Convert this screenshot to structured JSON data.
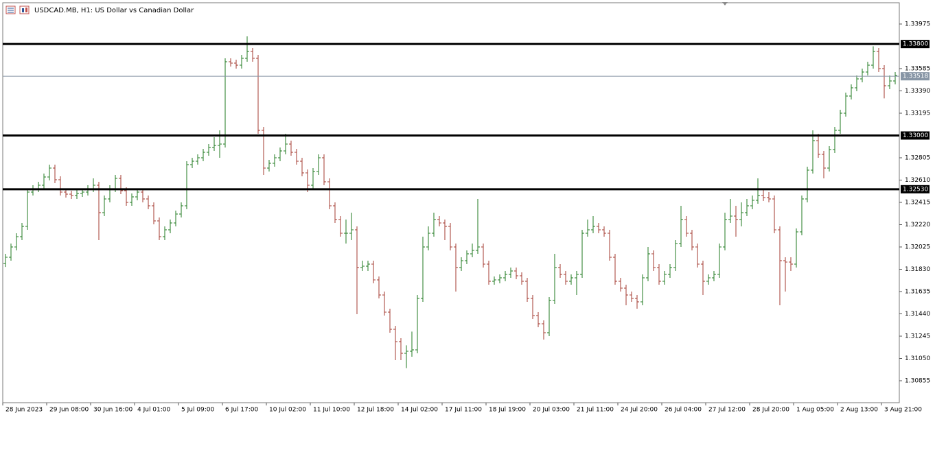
{
  "chart_data": {
    "type": "ohlc",
    "title": "USDCAD.MB, H1:  US Dollar vs Canadian Dollar",
    "up_color": "#1f7a1f",
    "down_color": "#a3392f",
    "ylim": [
      1.30663,
      1.34161
    ],
    "yticks": [
      1.33975,
      1.33585,
      {
        "value": 1.3339,
        "label": "1.33390"
      },
      1.33195,
      1.32805,
      {
        "value": 1.3261,
        "label": "1.32610"
      },
      1.32415,
      {
        "value": 1.3222,
        "label": "1.32220"
      },
      1.32025,
      {
        "value": 1.3183,
        "label": "1.31830"
      },
      1.31635,
      {
        "value": 1.3144,
        "label": "1.31440"
      },
      1.31245,
      {
        "value": 1.3105,
        "label": "1.31050"
      },
      1.30855
    ],
    "levels": [
      {
        "value": 1.338,
        "label": "1.33800"
      },
      {
        "value": 1.33,
        "label": "1.33000"
      },
      {
        "value": 1.3253,
        "label": "1.32530"
      }
    ],
    "price_line": 1.33518,
    "categories": [
      "28 Jun 2023",
      null,
      null,
      null,
      null,
      null,
      null,
      null,
      "29 Jun 08:00",
      null,
      null,
      null,
      null,
      null,
      null,
      null,
      "30 Jun 16:00",
      null,
      null,
      null,
      null,
      null,
      null,
      null,
      "4 Jul 01:00",
      null,
      null,
      null,
      null,
      null,
      null,
      null,
      "5 Jul 09:00",
      null,
      null,
      null,
      null,
      null,
      null,
      null,
      "6 Jul 17:00",
      null,
      null,
      null,
      null,
      null,
      null,
      null,
      "10 Jul 02:00",
      null,
      null,
      null,
      null,
      null,
      null,
      null,
      "11 Jul 10:00",
      null,
      null,
      null,
      null,
      null,
      null,
      null,
      "12 Jul 18:00",
      null,
      null,
      null,
      null,
      null,
      null,
      null,
      "14 Jul 02:00",
      null,
      null,
      null,
      null,
      null,
      null,
      null,
      "17 Jul 11:00",
      null,
      null,
      null,
      null,
      null,
      null,
      null,
      "18 Jul 19:00",
      null,
      null,
      null,
      null,
      null,
      null,
      null,
      "20 Jul 03:00",
      null,
      null,
      null,
      null,
      null,
      null,
      null,
      "21 Jul 11:00",
      null,
      null,
      null,
      null,
      null,
      null,
      null,
      "24 Jul 20:00",
      null,
      null,
      null,
      null,
      null,
      null,
      null,
      "26 Jul 04:00",
      null,
      null,
      null,
      null,
      null,
      null,
      null,
      "27 Jul 12:00",
      null,
      null,
      null,
      null,
      null,
      null,
      null,
      "28 Jul 20:00",
      null,
      null,
      null,
      null,
      null,
      null,
      null,
      "1 Aug 05:00",
      null,
      null,
      null,
      null,
      null,
      null,
      null,
      "2 Aug 13:00",
      null,
      null,
      null,
      null,
      null,
      null,
      null,
      "3 Aug 21:00",
      null,
      null
    ],
    "open": [
      1.3188,
      1.31935,
      1.32025,
      1.32115,
      1.32205,
      1.32505,
      1.32535,
      1.32565,
      1.32637,
      1.32715,
      1.32613,
      1.32505,
      1.32487,
      1.32475,
      1.32493,
      1.32505,
      1.32535,
      1.32565,
      1.32325,
      1.32445,
      1.32535,
      1.32625,
      1.32517,
      1.32415,
      1.32463,
      1.32505,
      1.32445,
      1.32385,
      1.32253,
      1.32115,
      1.32175,
      1.32235,
      1.32313,
      1.32385,
      1.32745,
      1.32775,
      1.32805,
      1.32853,
      1.32895,
      1.32913,
      1.32925,
      1.33645,
      1.33633,
      1.33615,
      1.33675,
      1.33735,
      1.33675,
      1.33045,
      1.32715,
      1.32757,
      1.32805,
      1.32865,
      1.32925,
      1.32853,
      1.32775,
      1.32673,
      1.32565,
      1.32685,
      1.32805,
      1.32595,
      1.32385,
      1.32265,
      1.32145,
      1.32145,
      1.32175,
      1.31845,
      1.31857,
      1.31875,
      1.31737,
      1.31605,
      1.31455,
      1.31305,
      1.31197,
      1.31095,
      1.31113,
      1.31125,
      1.31575,
      1.32025,
      1.32145,
      1.32265,
      1.32235,
      1.32205,
      1.32025,
      1.31845,
      1.31905,
      1.31965,
      1.31995,
      1.32025,
      1.31875,
      1.31725,
      1.31737,
      1.31755,
      1.31785,
      1.31815,
      1.31773,
      1.31725,
      1.31575,
      1.31425,
      1.31353,
      1.31275,
      1.31557,
      1.31845,
      1.31785,
      1.31725,
      1.31755,
      1.31785,
      1.32145,
      1.32175,
      1.32205,
      1.32175,
      1.32145,
      1.31935,
      1.31725,
      1.31665,
      1.31605,
      1.31575,
      1.31545,
      1.31755,
      1.31965,
      1.31845,
      1.31725,
      1.31785,
      1.31845,
      1.32055,
      1.32265,
      1.32145,
      1.32025,
      1.31875,
      1.31725,
      1.31755,
      1.31785,
      1.32025,
      1.32265,
      1.32295,
      1.32265,
      1.32325,
      1.32385,
      1.32433,
      1.32475,
      1.32457,
      1.32445,
      1.32175,
      1.31905,
      1.31893,
      1.31875,
      1.32157,
      1.32445,
      1.32697,
      1.32955,
      1.32835,
      1.32715,
      1.32877,
      1.33045,
      1.33195,
      1.33345,
      1.33417,
      1.33495,
      1.33555,
      1.33615,
      1.33735,
      1.33585,
      1.33435,
      1.33477
    ],
    "high": [
      1.31965,
      1.32055,
      1.32145,
      1.32235,
      1.32535,
      1.32565,
      1.32595,
      1.32667,
      1.32745,
      1.32745,
      1.32643,
      1.32535,
      1.32517,
      1.32523,
      1.32535,
      1.32565,
      1.32625,
      1.32595,
      1.32475,
      1.32565,
      1.32655,
      1.32655,
      1.32547,
      1.32493,
      1.32535,
      1.32535,
      1.32475,
      1.32415,
      1.32283,
      1.32205,
      1.32265,
      1.32343,
      1.32415,
      1.32775,
      1.32805,
      1.32835,
      1.32883,
      1.32925,
      1.32985,
      1.33045,
      1.33675,
      1.33675,
      1.33663,
      1.33705,
      1.33867,
      1.33765,
      1.33705,
      1.33075,
      1.32787,
      1.32835,
      1.32895,
      1.33015,
      1.32955,
      1.32883,
      1.32805,
      1.32703,
      1.32715,
      1.32835,
      1.32835,
      1.32625,
      1.32415,
      1.32295,
      1.32265,
      1.32325,
      1.32205,
      1.31905,
      1.31905,
      1.31905,
      1.31767,
      1.31635,
      1.31485,
      1.31335,
      1.31227,
      1.31165,
      1.31285,
      1.31605,
      1.32115,
      1.32205,
      1.32325,
      1.32295,
      1.32265,
      1.32235,
      1.32055,
      1.31935,
      1.31995,
      1.32055,
      1.32445,
      1.32055,
      1.31905,
      1.31767,
      1.31785,
      1.31815,
      1.31845,
      1.31845,
      1.31803,
      1.31755,
      1.31605,
      1.31455,
      1.31383,
      1.31587,
      1.31965,
      1.31875,
      1.31815,
      1.31785,
      1.31815,
      1.32175,
      1.32265,
      1.32295,
      1.32235,
      1.32205,
      1.32175,
      1.31965,
      1.31755,
      1.31695,
      1.31635,
      1.31605,
      1.31785,
      1.32025,
      1.31995,
      1.31875,
      1.31815,
      1.31875,
      1.32085,
      1.32385,
      1.32295,
      1.32175,
      1.32055,
      1.31905,
      1.31785,
      1.31815,
      1.32055,
      1.32325,
      1.32445,
      1.32385,
      1.32415,
      1.32445,
      1.32475,
      1.32625,
      1.32535,
      1.32505,
      1.32475,
      1.32205,
      1.31935,
      1.31935,
      1.32187,
      1.32475,
      1.32727,
      1.33045,
      1.33015,
      1.32865,
      1.32907,
      1.33075,
      1.33225,
      1.33375,
      1.33447,
      1.33525,
      1.33585,
      1.33645,
      1.3378,
      1.33765,
      1.33615,
      1.33525,
      1.33555
    ],
    "low": [
      1.3185,
      1.31905,
      1.31995,
      1.32085,
      1.32175,
      1.32475,
      1.32505,
      1.32535,
      1.32607,
      1.32583,
      1.32475,
      1.32457,
      1.32445,
      1.32445,
      1.32463,
      1.32475,
      1.32505,
      1.32085,
      1.32295,
      1.32415,
      1.32505,
      1.32487,
      1.32385,
      1.32385,
      1.32433,
      1.32415,
      1.32355,
      1.32223,
      1.32085,
      1.32085,
      1.32145,
      1.32205,
      1.32283,
      1.32355,
      1.32715,
      1.32745,
      1.32775,
      1.32823,
      1.32865,
      1.32805,
      1.32895,
      1.33603,
      1.33585,
      1.33585,
      1.33645,
      1.33645,
      1.33015,
      1.32655,
      1.32685,
      1.32727,
      1.32775,
      1.32835,
      1.32823,
      1.32745,
      1.32643,
      1.32505,
      1.32535,
      1.32655,
      1.32565,
      1.32355,
      1.32235,
      1.32115,
      1.32055,
      1.32085,
      1.31437,
      1.31815,
      1.31815,
      1.31707,
      1.31575,
      1.31425,
      1.31275,
      1.31035,
      1.31035,
      1.30965,
      1.31065,
      1.31095,
      1.31545,
      1.31995,
      1.32115,
      1.32205,
      1.32085,
      1.31995,
      1.31635,
      1.31815,
      1.31875,
      1.31935,
      1.31965,
      1.31845,
      1.31695,
      1.31695,
      1.31707,
      1.31725,
      1.31755,
      1.31743,
      1.31695,
      1.31545,
      1.31395,
      1.31323,
      1.31215,
      1.31245,
      1.31527,
      1.31755,
      1.31695,
      1.31695,
      1.31605,
      1.31755,
      1.32115,
      1.32145,
      1.32145,
      1.32115,
      1.31905,
      1.31695,
      1.31635,
      1.31515,
      1.31545,
      1.31485,
      1.31515,
      1.31725,
      1.31815,
      1.31695,
      1.31695,
      1.31755,
      1.31815,
      1.32025,
      1.32115,
      1.31995,
      1.31845,
      1.31605,
      1.31695,
      1.31725,
      1.31755,
      1.31995,
      1.32235,
      1.32115,
      1.32205,
      1.32295,
      1.32355,
      1.32403,
      1.32427,
      1.32415,
      1.32145,
      1.31515,
      1.31635,
      1.31815,
      1.31845,
      1.32127,
      1.32415,
      1.32667,
      1.32805,
      1.32625,
      1.32685,
      1.32847,
      1.33015,
      1.33165,
      1.33315,
      1.33387,
      1.33465,
      1.33525,
      1.33585,
      1.33555,
      1.33325,
      1.33405,
      1.33447
    ],
    "close": [
      1.31935,
      1.32025,
      1.32115,
      1.32205,
      1.32505,
      1.32535,
      1.32565,
      1.32637,
      1.32715,
      1.32613,
      1.32505,
      1.32487,
      1.32475,
      1.32493,
      1.32505,
      1.32535,
      1.32565,
      1.32325,
      1.32445,
      1.32535,
      1.32625,
      1.32517,
      1.32415,
      1.32463,
      1.32505,
      1.32445,
      1.32385,
      1.32253,
      1.32115,
      1.32175,
      1.32235,
      1.32313,
      1.32385,
      1.32745,
      1.32775,
      1.32805,
      1.32853,
      1.32895,
      1.32913,
      1.32925,
      1.33645,
      1.33633,
      1.33615,
      1.33675,
      1.33735,
      1.33675,
      1.33045,
      1.32715,
      1.32757,
      1.32805,
      1.32865,
      1.32925,
      1.32853,
      1.32775,
      1.32673,
      1.32565,
      1.32685,
      1.32805,
      1.32595,
      1.32385,
      1.32265,
      1.32145,
      1.32145,
      1.32175,
      1.31845,
      1.31857,
      1.31875,
      1.31737,
      1.31605,
      1.31455,
      1.31305,
      1.31197,
      1.31095,
      1.31113,
      1.31125,
      1.31575,
      1.32025,
      1.32145,
      1.32265,
      1.32235,
      1.32205,
      1.32025,
      1.31845,
      1.31905,
      1.31965,
      1.31995,
      1.32025,
      1.31875,
      1.31725,
      1.31737,
      1.31755,
      1.31785,
      1.31815,
      1.31773,
      1.31725,
      1.31575,
      1.31425,
      1.31353,
      1.31275,
      1.31557,
      1.31845,
      1.31785,
      1.31725,
      1.31755,
      1.31785,
      1.32145,
      1.32175,
      1.32205,
      1.32175,
      1.32145,
      1.31935,
      1.31725,
      1.31665,
      1.31605,
      1.31575,
      1.31545,
      1.31755,
      1.31965,
      1.31845,
      1.31725,
      1.31785,
      1.31845,
      1.32055,
      1.32265,
      1.32145,
      1.32025,
      1.31875,
      1.31725,
      1.31755,
      1.31785,
      1.32025,
      1.32265,
      1.32295,
      1.32265,
      1.32325,
      1.32385,
      1.32433,
      1.32475,
      1.32457,
      1.32445,
      1.32175,
      1.31905,
      1.31893,
      1.31875,
      1.32157,
      1.32445,
      1.32697,
      1.32955,
      1.32835,
      1.32715,
      1.32877,
      1.33045,
      1.33195,
      1.33345,
      1.33417,
      1.33495,
      1.33555,
      1.33615,
      1.33735,
      1.33585,
      1.33435,
      1.33477,
      1.33525
    ]
  }
}
